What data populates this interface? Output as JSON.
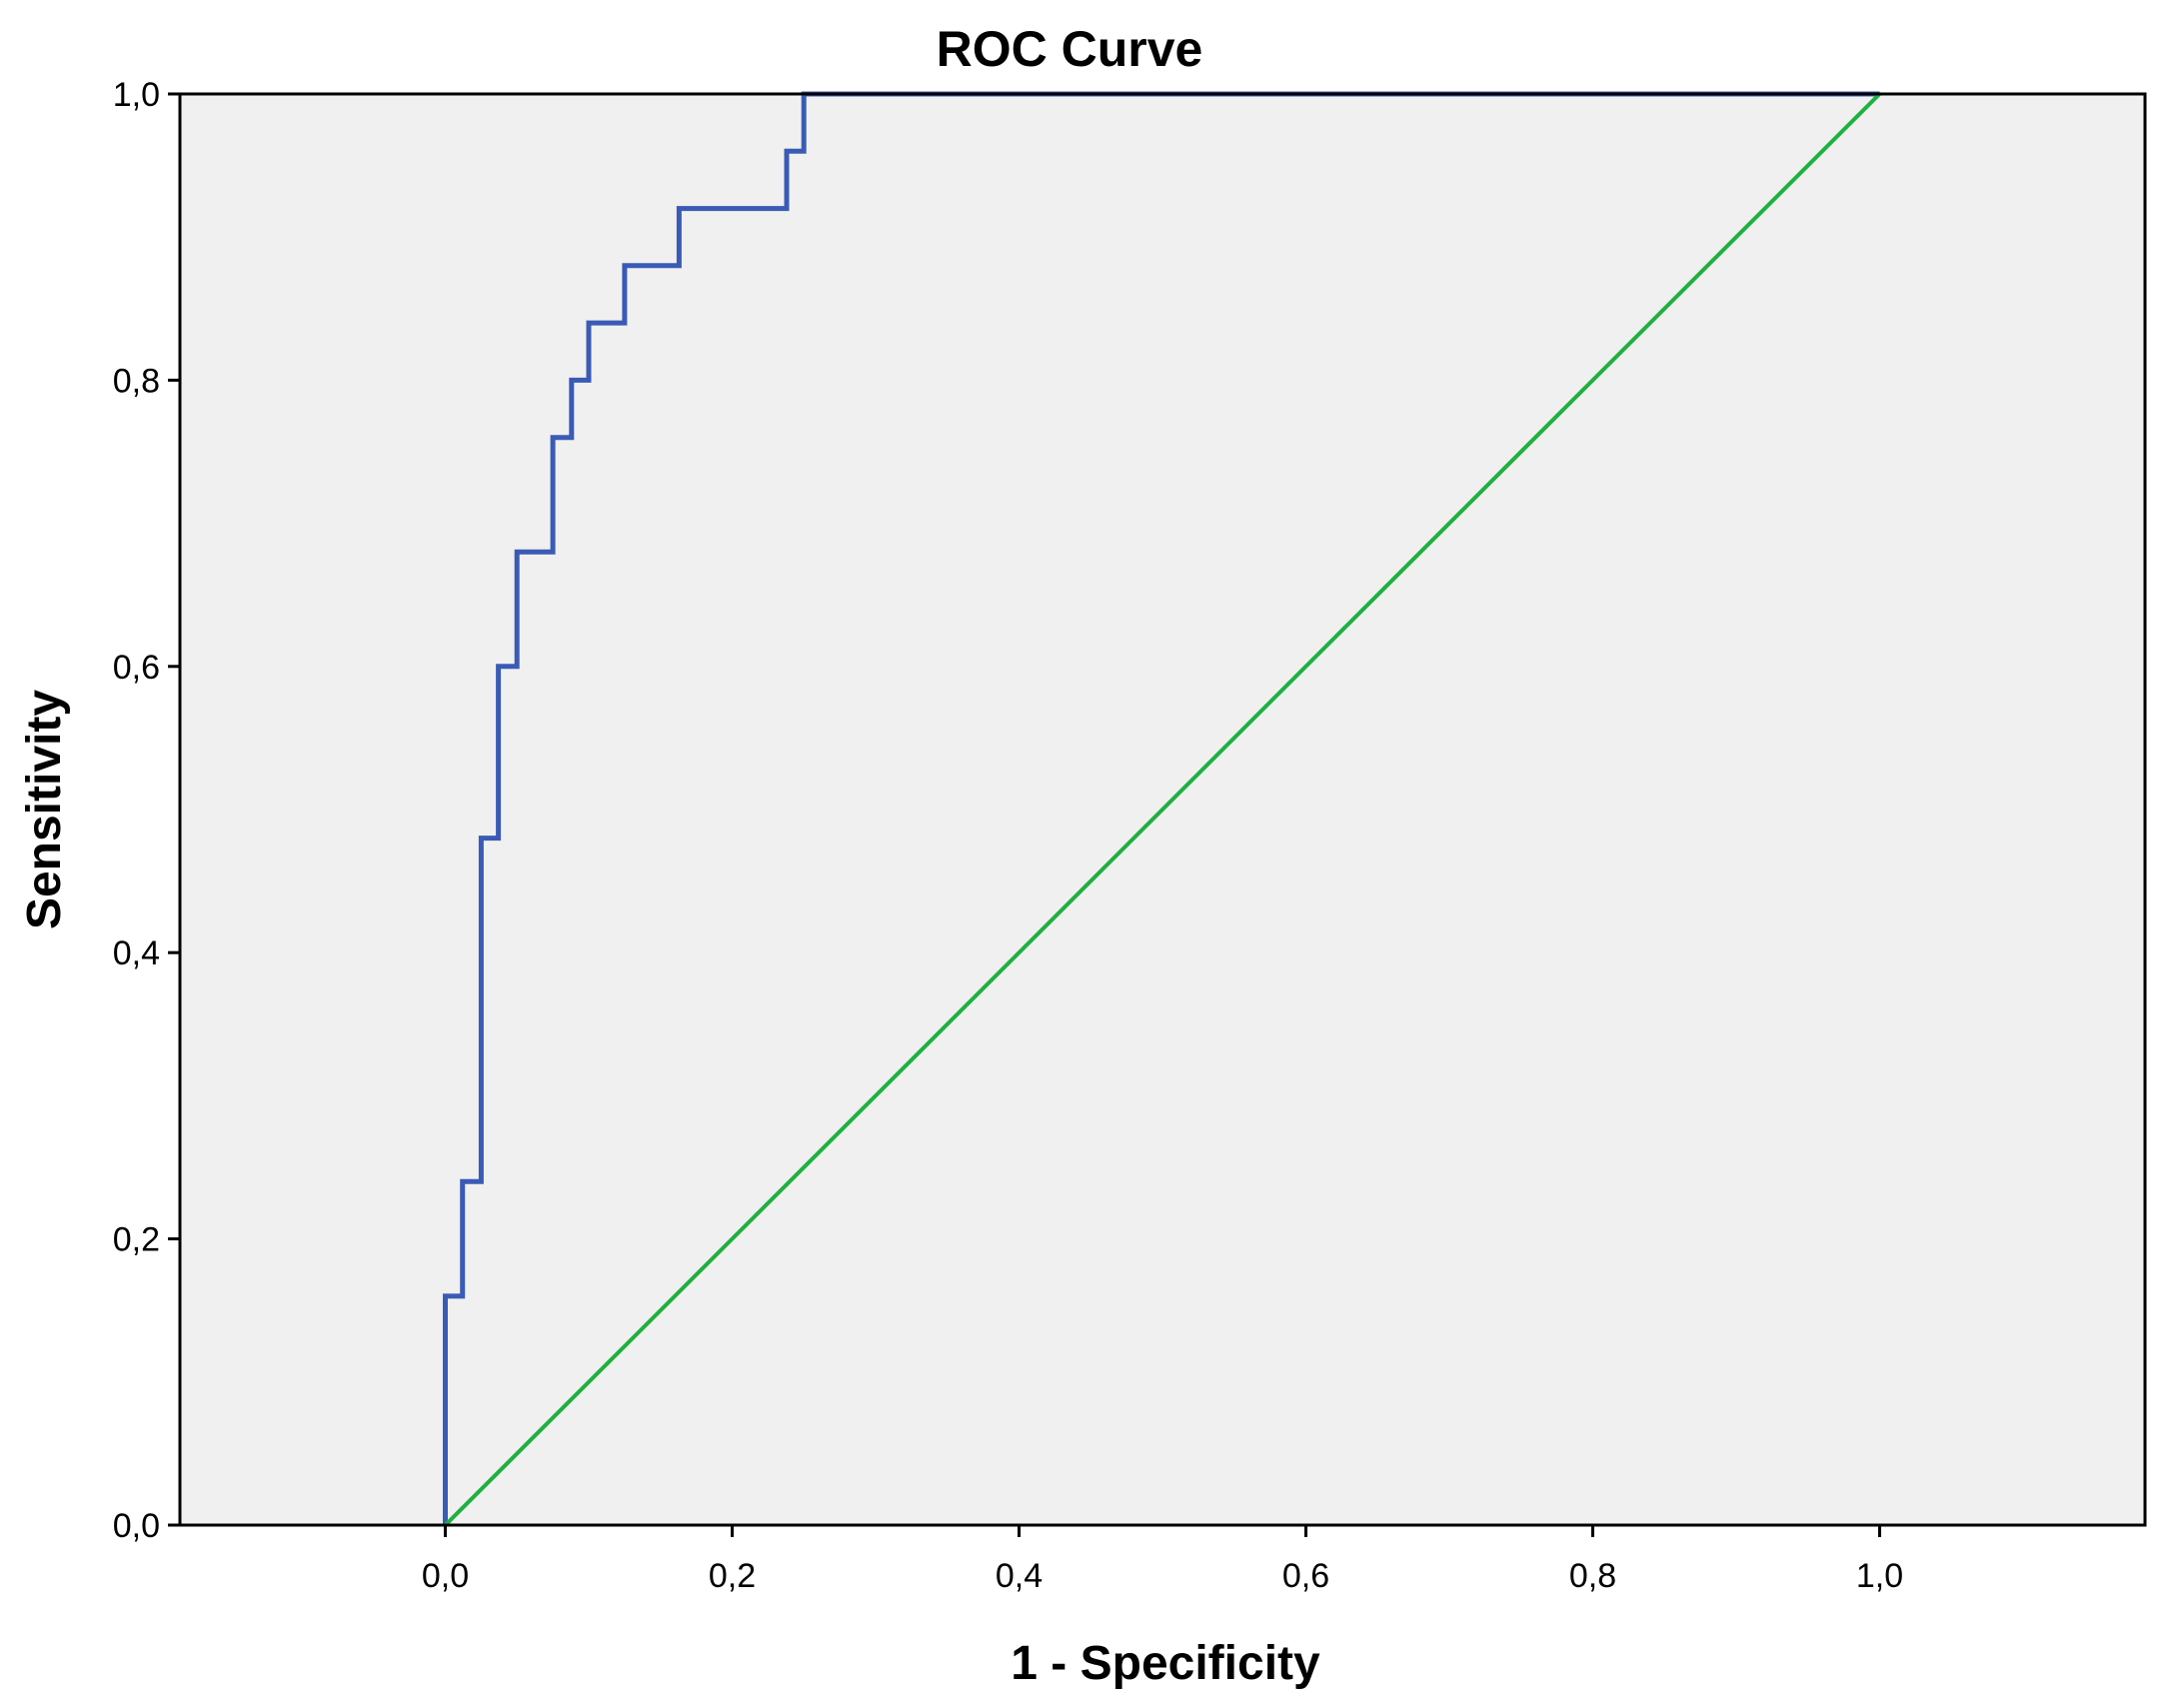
{
  "chart_data": {
    "type": "line",
    "title": "ROC Curve",
    "xlabel": "1 - Specificity",
    "ylabel": "Sensitivity",
    "xlim": [
      -0.185,
      1.185
    ],
    "ylim": [
      0,
      1
    ],
    "xticks": [
      {
        "value": 0.0,
        "label": "0,0"
      },
      {
        "value": 0.2,
        "label": "0,2"
      },
      {
        "value": 0.4,
        "label": "0,4"
      },
      {
        "value": 0.6,
        "label": "0,6"
      },
      {
        "value": 0.8,
        "label": "0,8"
      },
      {
        "value": 1.0,
        "label": "1,0"
      }
    ],
    "yticks": [
      {
        "value": 0.0,
        "label": "0,0"
      },
      {
        "value": 0.2,
        "label": "0,2"
      },
      {
        "value": 0.4,
        "label": "0,4"
      },
      {
        "value": 0.6,
        "label": "0,6"
      },
      {
        "value": 0.8,
        "label": "0,8"
      },
      {
        "value": 1.0,
        "label": "1,0"
      }
    ],
    "grid": false,
    "background": "#f0f0f0",
    "series": [
      {
        "color": "#3a5bb5",
        "step": true,
        "x": [
          0.0,
          0.0,
          0.012,
          0.012,
          0.025,
          0.025,
          0.037,
          0.037,
          0.05,
          0.05,
          0.075,
          0.075,
          0.088,
          0.088,
          0.1,
          0.1,
          0.125,
          0.125,
          0.163,
          0.163,
          0.238,
          0.238,
          0.25,
          0.25,
          1.0
        ],
        "y": [
          0.0,
          0.16,
          0.16,
          0.24,
          0.24,
          0.48,
          0.48,
          0.6,
          0.6,
          0.68,
          0.68,
          0.76,
          0.76,
          0.8,
          0.8,
          0.84,
          0.84,
          0.88,
          0.88,
          0.92,
          0.92,
          0.96,
          0.96,
          1.0,
          1.0
        ]
      },
      {
        "color": "#1fb040",
        "step": false,
        "x": [
          0.0,
          1.0
        ],
        "y": [
          0.0,
          1.0
        ]
      }
    ]
  }
}
